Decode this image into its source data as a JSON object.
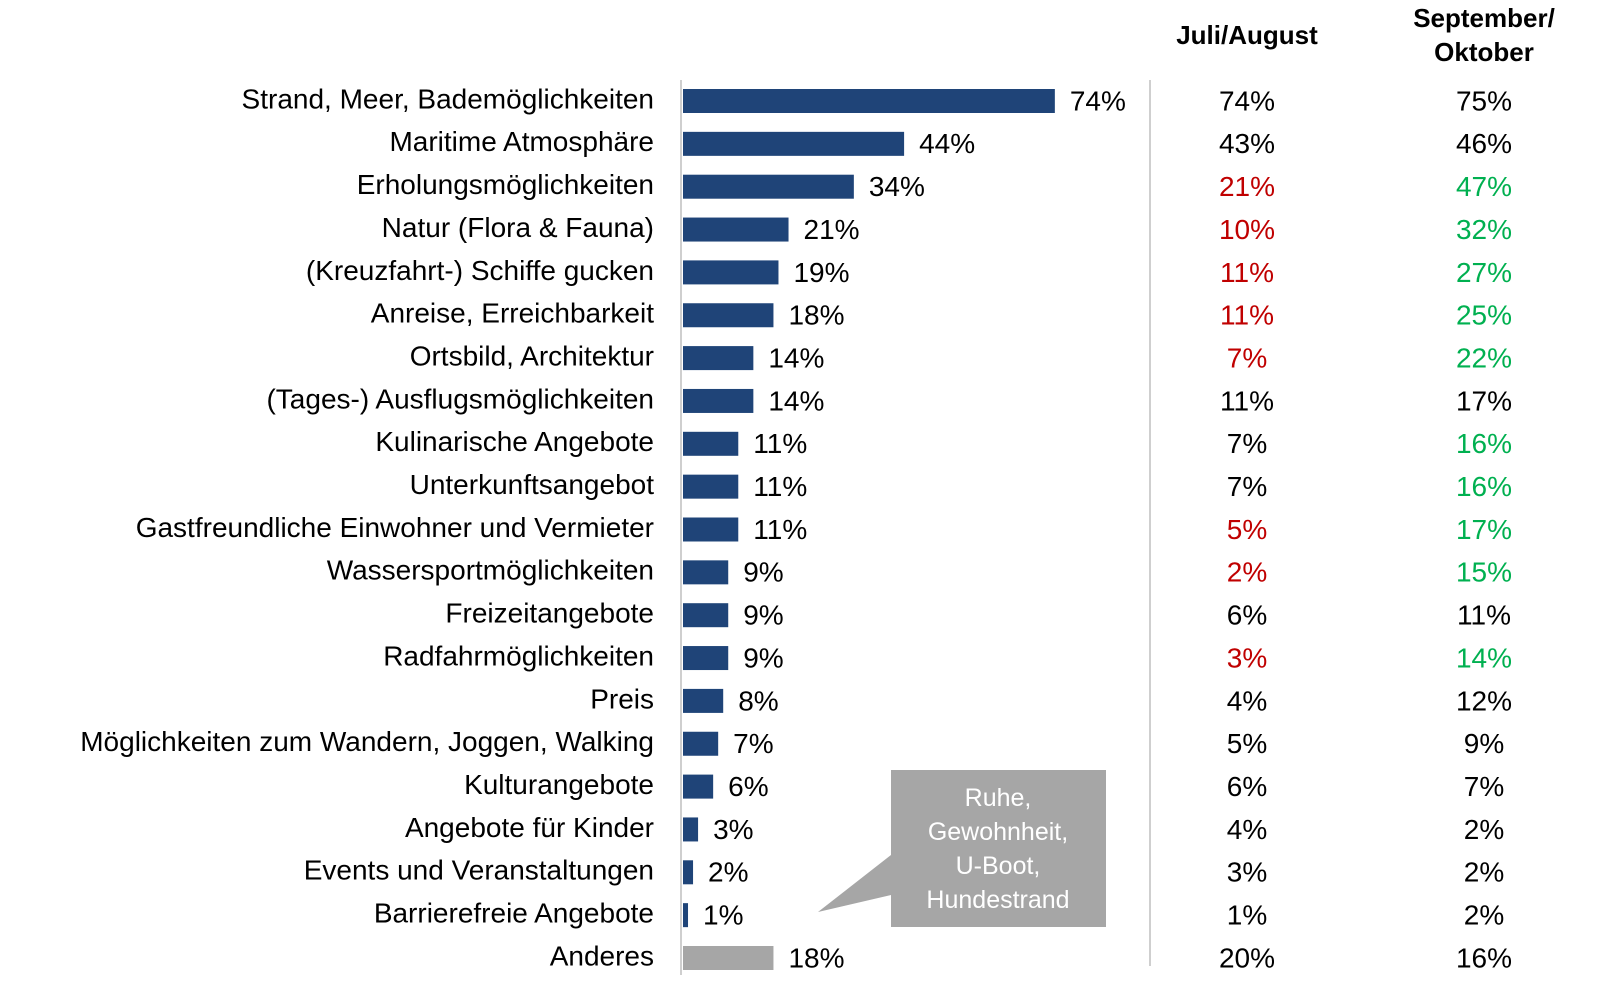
{
  "chart_data": {
    "type": "bar",
    "orientation": "horizontal",
    "categories": [
      "Strand, Meer, Bademöglichkeiten",
      "Maritime Atmosphäre",
      "Erholungsmöglichkeiten",
      "Natur (Flora & Fauna)",
      "(Kreuzfahrt-) Schiffe gucken",
      "Anreise, Erreichbarkeit",
      "Ortsbild, Architektur",
      "(Tages-) Ausflugsmöglichkeiten",
      "Kulinarische Angebote",
      "Unterkunftsangebot",
      "Gastfreundliche Einwohner und Vermieter",
      "Wassersportmöglichkeiten",
      "Freizeitangebote",
      "Radfahrmöglichkeiten",
      "Preis",
      "Möglichkeiten zum Wandern, Joggen, Walking",
      "Kulturangebote",
      "Angebote für Kinder",
      "Events und Veranstaltungen",
      "Barrierefreie Angebote",
      "Anderes"
    ],
    "values": [
      74,
      44,
      34,
      21,
      19,
      18,
      14,
      14,
      11,
      11,
      11,
      9,
      9,
      9,
      8,
      7,
      6,
      3,
      2,
      1,
      18
    ],
    "value_labels": [
      "74%",
      "44%",
      "34%",
      "21%",
      "19%",
      "18%",
      "14%",
      "14%",
      "11%",
      "11%",
      "11%",
      "9%",
      "9%",
      "9%",
      "8%",
      "7%",
      "6%",
      "3%",
      "2%",
      "1%",
      "18%"
    ],
    "colors": [
      "#1f4478",
      "#1f4478",
      "#1f4478",
      "#1f4478",
      "#1f4478",
      "#1f4478",
      "#1f4478",
      "#1f4478",
      "#1f4478",
      "#1f4478",
      "#1f4478",
      "#1f4478",
      "#1f4478",
      "#1f4478",
      "#1f4478",
      "#1f4478",
      "#1f4478",
      "#1f4478",
      "#1f4478",
      "#1f4478",
      "#a6a6a6"
    ],
    "xlim": [
      0,
      80
    ],
    "columns": [
      {
        "name": "Juli/August",
        "values": [
          74,
          43,
          21,
          10,
          11,
          11,
          7,
          11,
          7,
          7,
          5,
          2,
          6,
          3,
          4,
          5,
          6,
          4,
          3,
          1,
          20
        ],
        "value_labels": [
          "74%",
          "43%",
          "21%",
          "10%",
          "11%",
          "11%",
          "7%",
          "11%",
          "7%",
          "7%",
          "5%",
          "2%",
          "6%",
          "3%",
          "4%",
          "5%",
          "6%",
          "4%",
          "3%",
          "1%",
          "20%"
        ],
        "colors": [
          "#000000",
          "#000000",
          "#c00000",
          "#c00000",
          "#c00000",
          "#c00000",
          "#c00000",
          "#000000",
          "#000000",
          "#000000",
          "#c00000",
          "#c00000",
          "#000000",
          "#c00000",
          "#000000",
          "#000000",
          "#000000",
          "#000000",
          "#000000",
          "#000000",
          "#000000"
        ]
      },
      {
        "name": "September/\nOktober",
        "values": [
          75,
          46,
          47,
          32,
          27,
          25,
          22,
          17,
          16,
          16,
          17,
          15,
          11,
          14,
          12,
          9,
          7,
          2,
          2,
          2,
          16
        ],
        "value_labels": [
          "75%",
          "46%",
          "47%",
          "32%",
          "27%",
          "25%",
          "22%",
          "17%",
          "16%",
          "16%",
          "17%",
          "15%",
          "11%",
          "14%",
          "12%",
          "9%",
          "7%",
          "2%",
          "2%",
          "2%",
          "16%"
        ],
        "colors": [
          "#000000",
          "#000000",
          "#00b050",
          "#00b050",
          "#00b050",
          "#00b050",
          "#00b050",
          "#000000",
          "#00b050",
          "#00b050",
          "#00b050",
          "#00b050",
          "#000000",
          "#00b050",
          "#000000",
          "#000000",
          "#000000",
          "#000000",
          "#000000",
          "#000000",
          "#000000"
        ]
      }
    ],
    "annotation": "Ruhe,\nGewohnheit,\nU-Boot,\nHundestrand"
  }
}
